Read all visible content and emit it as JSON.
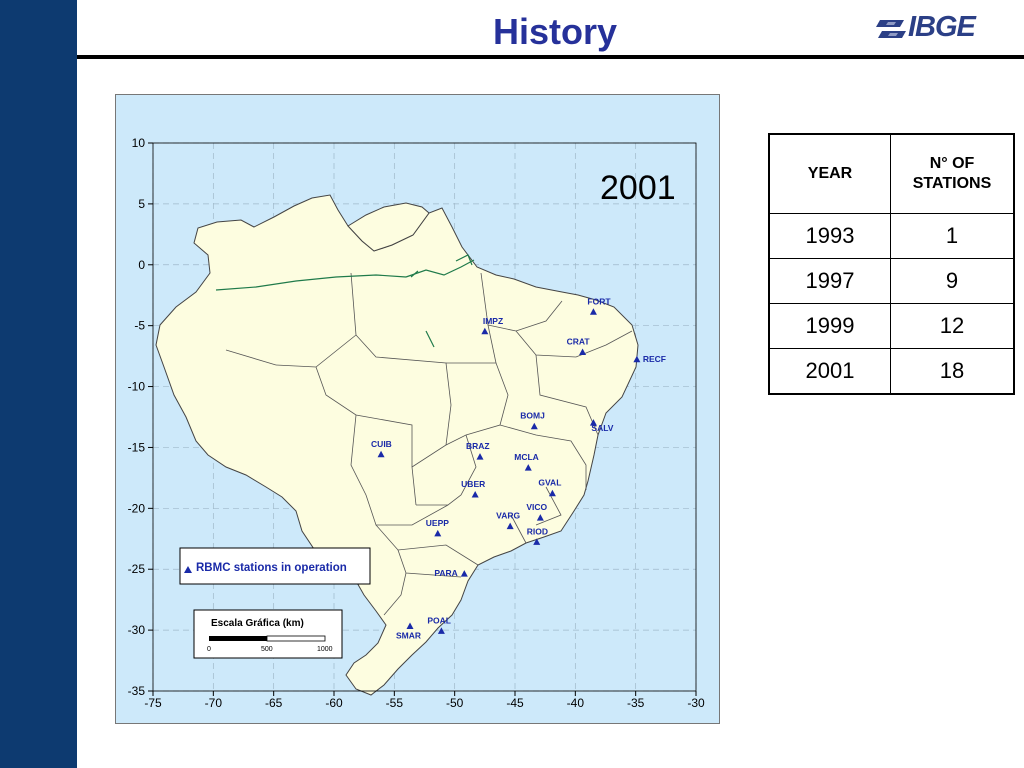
{
  "page": {
    "title": "History",
    "logo_text": "IBGE"
  },
  "map": {
    "year_label": "2001",
    "legend_label": "RBMC stations in operation",
    "scale": {
      "title": "Escala Gráfica (km)",
      "ticks": [
        "0",
        "500",
        "1000"
      ]
    },
    "lat_ticks": [
      "10",
      "5",
      "0",
      "-5",
      "-10",
      "-15",
      "-20",
      "-25",
      "-30",
      "-35"
    ],
    "lon_ticks": [
      "-75",
      "-70",
      "-65",
      "-60",
      "-55",
      "-50",
      "-45",
      "-40",
      "-35",
      "-30"
    ],
    "stations": [
      {
        "name": "FORT",
        "lon": -38.5,
        "lat": -3.9
      },
      {
        "name": "IMPZ",
        "lon": -47.5,
        "lat": -5.5
      },
      {
        "name": "CRAT",
        "lon": -39.4,
        "lat": -7.2
      },
      {
        "name": "RECF",
        "lon": -34.9,
        "lat": -7.8
      },
      {
        "name": "BOMJ",
        "lon": -43.4,
        "lat": -13.3
      },
      {
        "name": "SALV",
        "lon": -38.5,
        "lat": -13.0
      },
      {
        "name": "CUIB",
        "lon": -56.1,
        "lat": -15.6
      },
      {
        "name": "BRAZ",
        "lon": -47.9,
        "lat": -15.8
      },
      {
        "name": "MCLA",
        "lon": -43.9,
        "lat": -16.7
      },
      {
        "name": "GVAL",
        "lon": -41.9,
        "lat": -18.8
      },
      {
        "name": "UBER",
        "lon": -48.3,
        "lat": -18.9
      },
      {
        "name": "VICO",
        "lon": -42.9,
        "lat": -20.8
      },
      {
        "name": "VARG",
        "lon": -45.4,
        "lat": -21.5
      },
      {
        "name": "UEPP",
        "lon": -51.4,
        "lat": -22.1
      },
      {
        "name": "RIOD",
        "lon": -43.2,
        "lat": -22.8
      },
      {
        "name": "PARA",
        "lon": -49.2,
        "lat": -25.4
      },
      {
        "name": "POAL",
        "lon": -51.1,
        "lat": -30.1
      },
      {
        "name": "SMAR",
        "lon": -53.7,
        "lat": -29.7
      }
    ],
    "colors": {
      "ocean": "#cde9fa",
      "land": "#fdfde0",
      "station": "#1a2aa8",
      "border": "#555555",
      "river": "#1f7a4a"
    }
  },
  "table": {
    "header": {
      "year": "YEAR",
      "stations_line1": "N°  OF",
      "stations_line2": "STATIONS"
    },
    "rows": [
      {
        "year": "1993",
        "count": "1"
      },
      {
        "year": "1997",
        "count": "9"
      },
      {
        "year": "1999",
        "count": "12"
      },
      {
        "year": "2001",
        "count": "18"
      }
    ]
  }
}
